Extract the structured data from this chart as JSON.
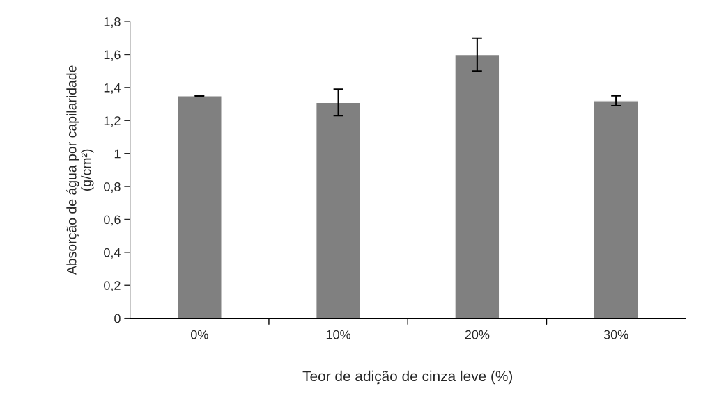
{
  "chart_data": {
    "type": "bar",
    "xlabel": "Teor de adição de cinza leve (%)",
    "ylabel": "Absorção de água por capilaridade\n(g/cm²)",
    "categories": [
      "0%",
      "10%",
      "20%",
      "30%"
    ],
    "values": [
      1.35,
      1.31,
      1.6,
      1.32
    ],
    "errors": [
      0.003,
      0.08,
      0.1,
      0.03
    ],
    "color": "#808080",
    "ylim": [
      0,
      1.8
    ],
    "yticks": [
      {
        "value": 0,
        "label": "0"
      },
      {
        "value": 0.2,
        "label": "0,2"
      },
      {
        "value": 0.4,
        "label": "0,4"
      },
      {
        "value": 0.6,
        "label": "0,6"
      },
      {
        "value": 0.8,
        "label": "0,8"
      },
      {
        "value": 1,
        "label": "1"
      },
      {
        "value": 1.2,
        "label": "1,2"
      },
      {
        "value": 1.4,
        "label": "1,4"
      },
      {
        "value": 1.6,
        "label": "1,6"
      },
      {
        "value": 1.8,
        "label": "1,8"
      }
    ],
    "grid": false,
    "legend": false
  }
}
